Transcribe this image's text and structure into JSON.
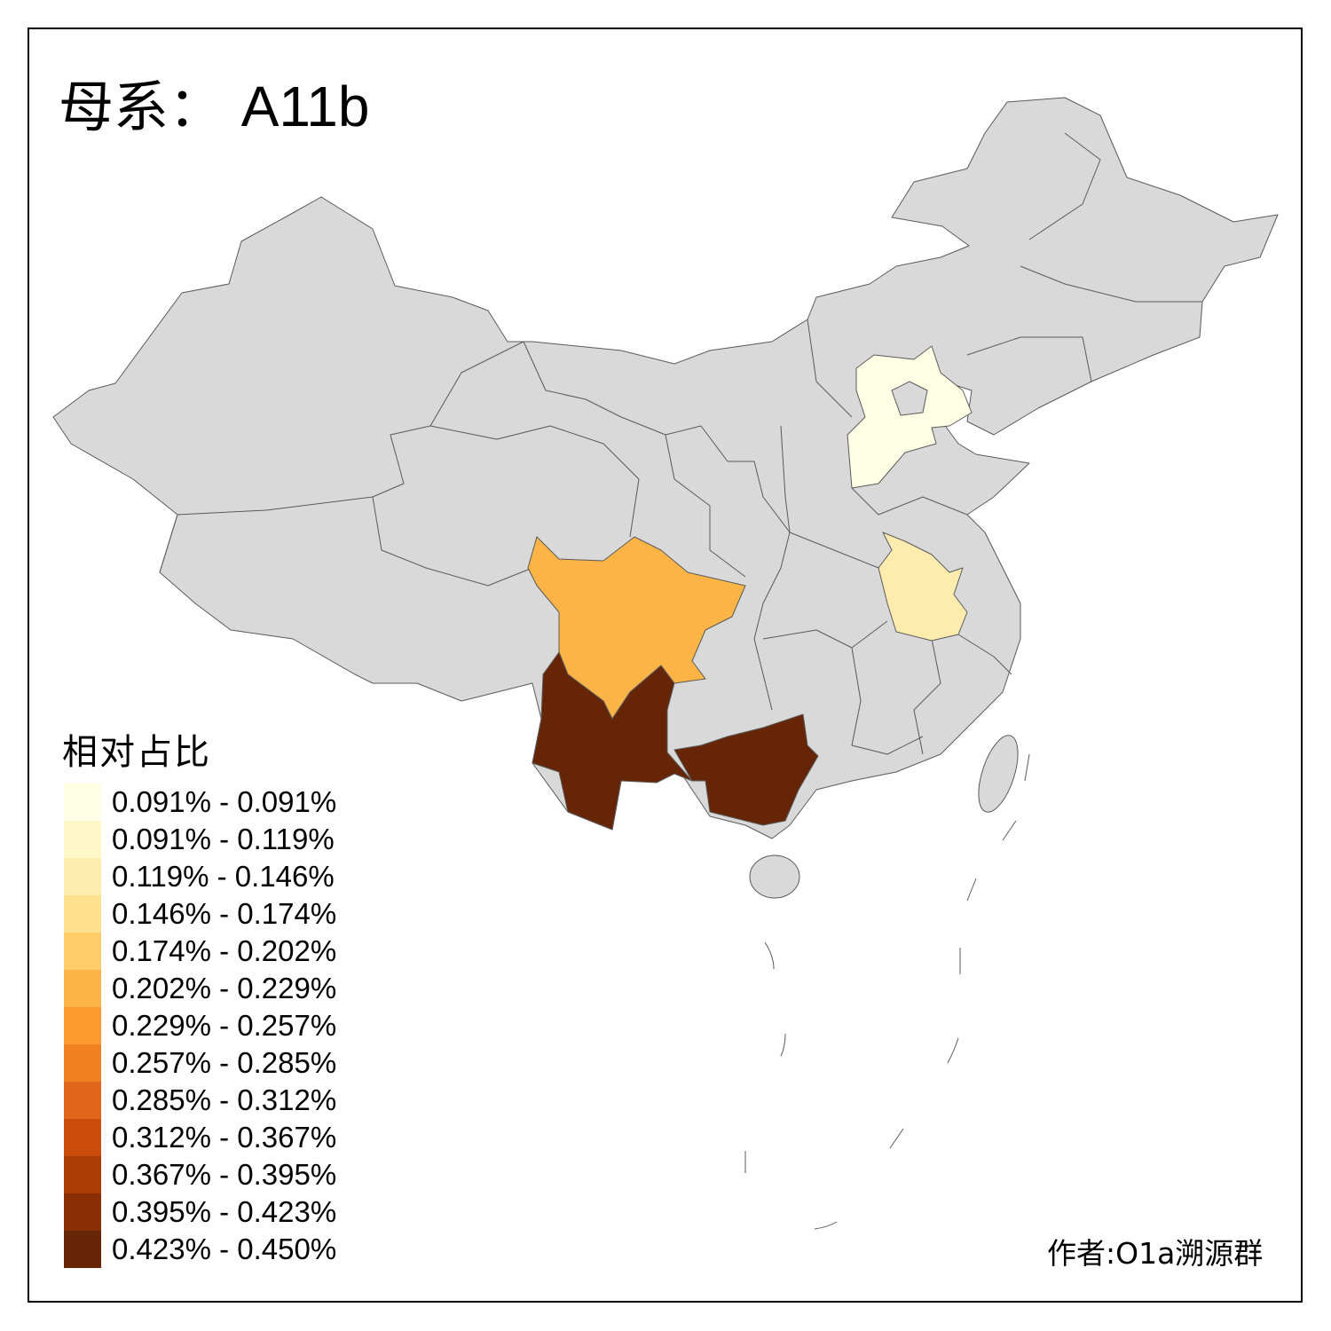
{
  "title": {
    "prefix": "母系：",
    "haplogroup": "A11b"
  },
  "legend": {
    "title": "相对占比",
    "classes": [
      {
        "label": "0.091% - 0.091%",
        "color": "#FFFFE5"
      },
      {
        "label": "0.091% - 0.119%",
        "color": "#FFF7C8"
      },
      {
        "label": "0.119% - 0.146%",
        "color": "#FEEBAE"
      },
      {
        "label": "0.146% - 0.174%",
        "color": "#FEE08E"
      },
      {
        "label": "0.174% - 0.202%",
        "color": "#FECD69"
      },
      {
        "label": "0.202% - 0.229%",
        "color": "#FDB446"
      },
      {
        "label": "0.229% - 0.257%",
        "color": "#FC9A2D"
      },
      {
        "label": "0.257% - 0.285%",
        "color": "#F18021"
      },
      {
        "label": "0.285% - 0.312%",
        "color": "#E1651A"
      },
      {
        "label": "0.312% - 0.367%",
        "color": "#CC4C0C"
      },
      {
        "label": "0.367% - 0.395%",
        "color": "#AB3C05"
      },
      {
        "label": "0.395% - 0.423%",
        "color": "#8A2F05"
      },
      {
        "label": "0.423% - 0.450%",
        "color": "#662506"
      }
    ]
  },
  "map": {
    "no_data_color": "#D9D9D9",
    "border_color": "#5A5A5A",
    "region_classes": {
      "hebei": 0,
      "anhui": 2,
      "sichuan": 5,
      "yunnan": 12,
      "guangxi": 12
    }
  },
  "author": "作者:O1a溯源群"
}
